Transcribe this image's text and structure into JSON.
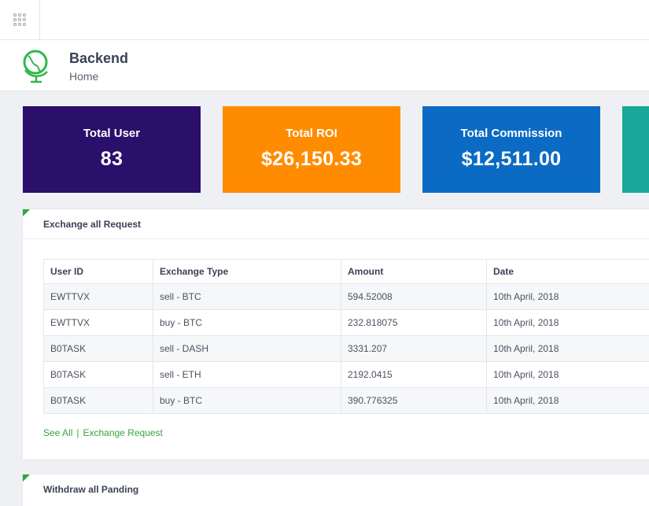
{
  "header": {
    "title": "Backend",
    "breadcrumb": "Home"
  },
  "stats": [
    {
      "label": "Total User",
      "value": "83",
      "color": "#2a0f6b"
    },
    {
      "label": "Total ROI",
      "value": "$26,150.33",
      "color": "#ff8c00"
    },
    {
      "label": "Total Commission",
      "value": "$12,511.00",
      "color": "#0b6bc4"
    },
    {
      "color": "#18a79a"
    }
  ],
  "exchange": {
    "title": "Exchange all Request",
    "columns": [
      "User ID",
      "Exchange Type",
      "Amount",
      "Date"
    ],
    "rows": [
      [
        "EWTTVX",
        "sell - BTC",
        "594.52008",
        "10th April, 2018"
      ],
      [
        "EWTTVX",
        "buy - BTC",
        "232.818075",
        "10th April, 2018"
      ],
      [
        "B0TASK",
        "sell - DASH",
        "3331.207",
        "10th April, 2018"
      ],
      [
        "B0TASK",
        "sell - ETH",
        "2192.0415",
        "10th April, 2018"
      ],
      [
        "B0TASK",
        "buy - BTC",
        "390.776325",
        "10th April, 2018"
      ]
    ],
    "see_all": "See All",
    "separator": "|",
    "link": "Exchange Request"
  },
  "withdraw": {
    "title": "Withdraw all Panding"
  },
  "colors": {
    "accent": "#2ea836",
    "logo": "#2fb84a"
  },
  "icons": {
    "apps": "grid-icon",
    "logo": "globe-icon"
  }
}
